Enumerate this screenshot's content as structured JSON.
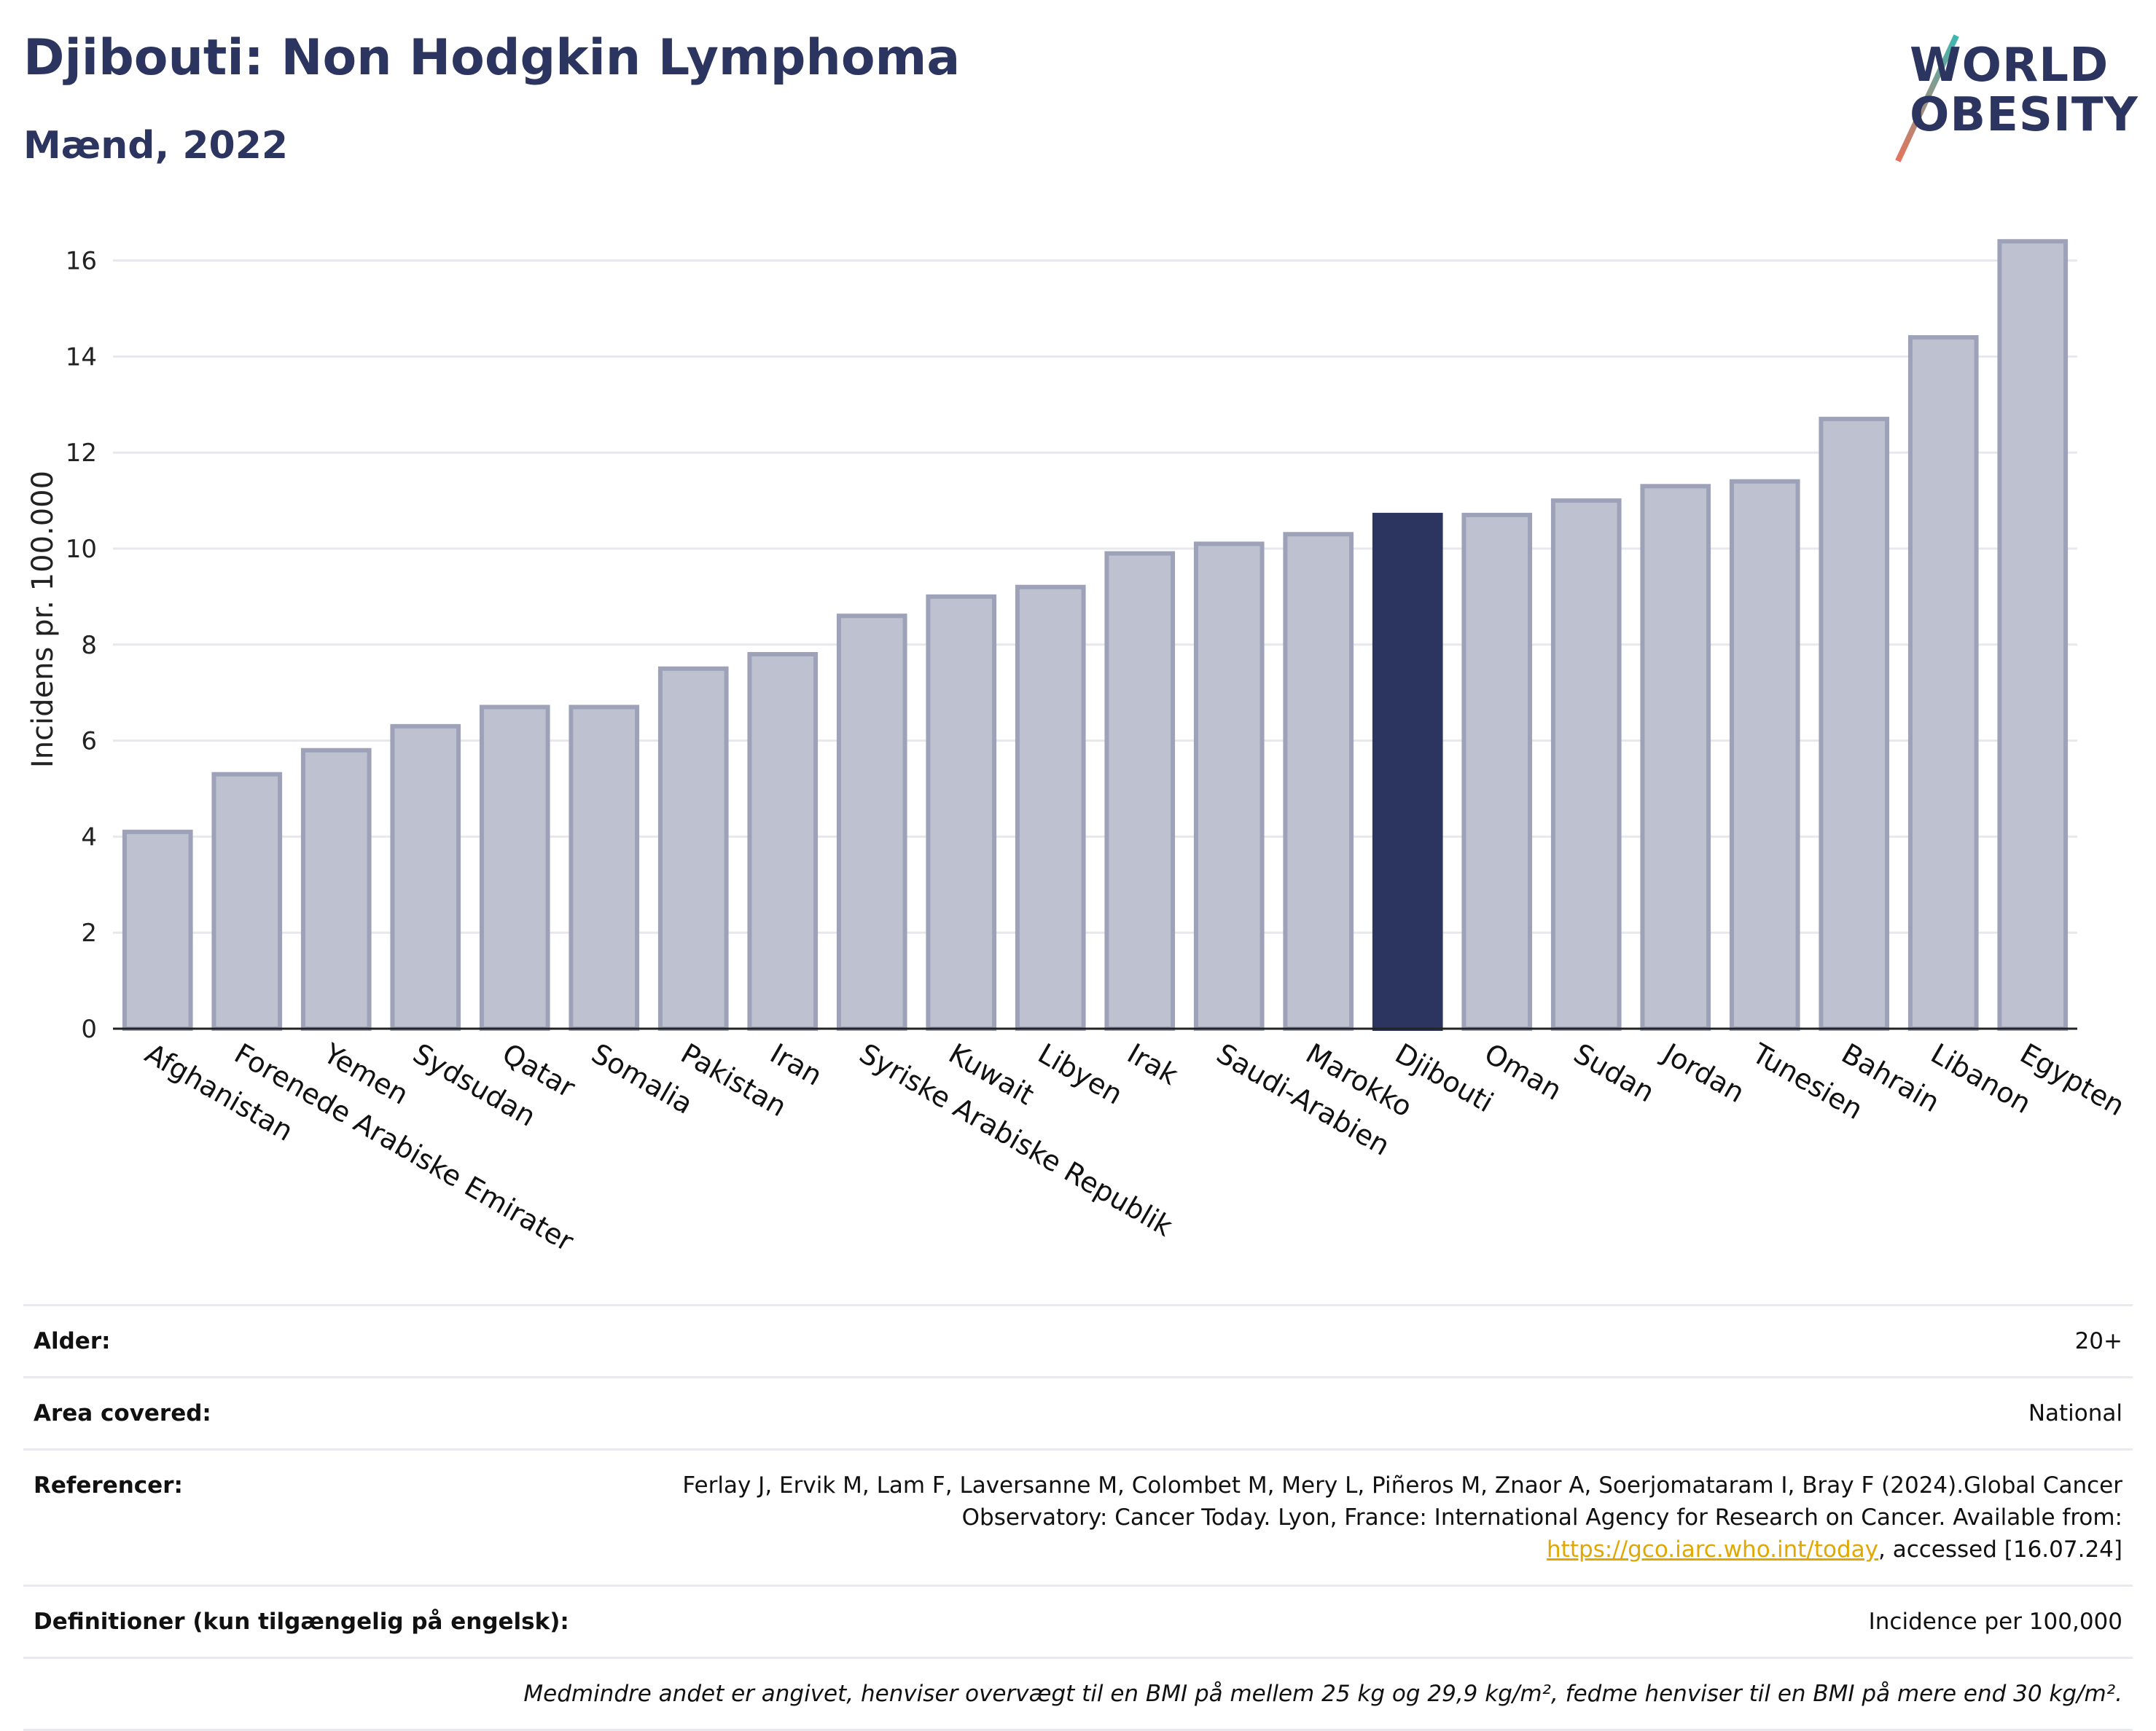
{
  "header": {
    "title": "Djibouti: Non Hodgkin Lymphoma",
    "subtitle": "Mænd, 2022"
  },
  "logo": {
    "line1": "WORLD",
    "line2": "OBESITY"
  },
  "colors": {
    "highlight": "#2b3560",
    "bar_fill": "#bec1d0",
    "bar_stroke": "#9da2b8",
    "grid": "#e6e8ee",
    "link": "#e0a800"
  },
  "chart_data": {
    "type": "bar",
    "title": "Djibouti: Non Hodgkin Lymphoma",
    "ylabel": "Incidens pr. 100.000",
    "xlabel": "",
    "ylim": [
      0,
      17
    ],
    "yticks": [
      0,
      2,
      4,
      6,
      8,
      10,
      12,
      14,
      16
    ],
    "grid": true,
    "highlight": "Djibouti",
    "categories": [
      "Afghanistan",
      "Forenede Arabiske Emirater",
      "Yemen",
      "Sydsudan",
      "Qatar",
      "Somalia",
      "Pakistan",
      "Iran",
      "Syriske Arabiske Republik",
      "Kuwait",
      "Libyen",
      "Irak",
      "Saudi-Arabien",
      "Marokko",
      "Djibouti",
      "Oman",
      "Sudan",
      "Jordan",
      "Tunesien",
      "Bahrain",
      "Libanon",
      "Egypten"
    ],
    "values": [
      4.1,
      5.3,
      5.8,
      6.3,
      6.7,
      6.7,
      7.5,
      7.8,
      8.6,
      9.0,
      9.2,
      9.9,
      10.1,
      10.3,
      10.7,
      10.7,
      11.0,
      11.3,
      11.4,
      12.7,
      14.4,
      16.4
    ]
  },
  "info": {
    "age_label": "Alder:",
    "age_value": "20+",
    "area_label": "Area covered:",
    "area_value": "National",
    "ref_label": "Referencer:",
    "ref_text_1": "Ferlay J, Ervik M, Lam F, Laversanne M, Colombet M, Mery L, Piñeros M, Znaor A, Soerjomataram I, Bray F (2024).Global Cancer Observatory: Cancer Today. Lyon, France: International Agency for Research on Cancer. Available from: ",
    "ref_link": "https://gco.iarc.who.int/today",
    "ref_text_2": ", accessed [16.07.24]",
    "def_label": "Definitioner (kun tilgængelig på engelsk):",
    "def_value": "Incidence per 100,000",
    "note": "Medmindre andet er angivet, henviser overvægt til en BMI på mellem 25 kg og 29,9 kg/m², fedme henviser til en BMI på mere end 30 kg/m²."
  }
}
